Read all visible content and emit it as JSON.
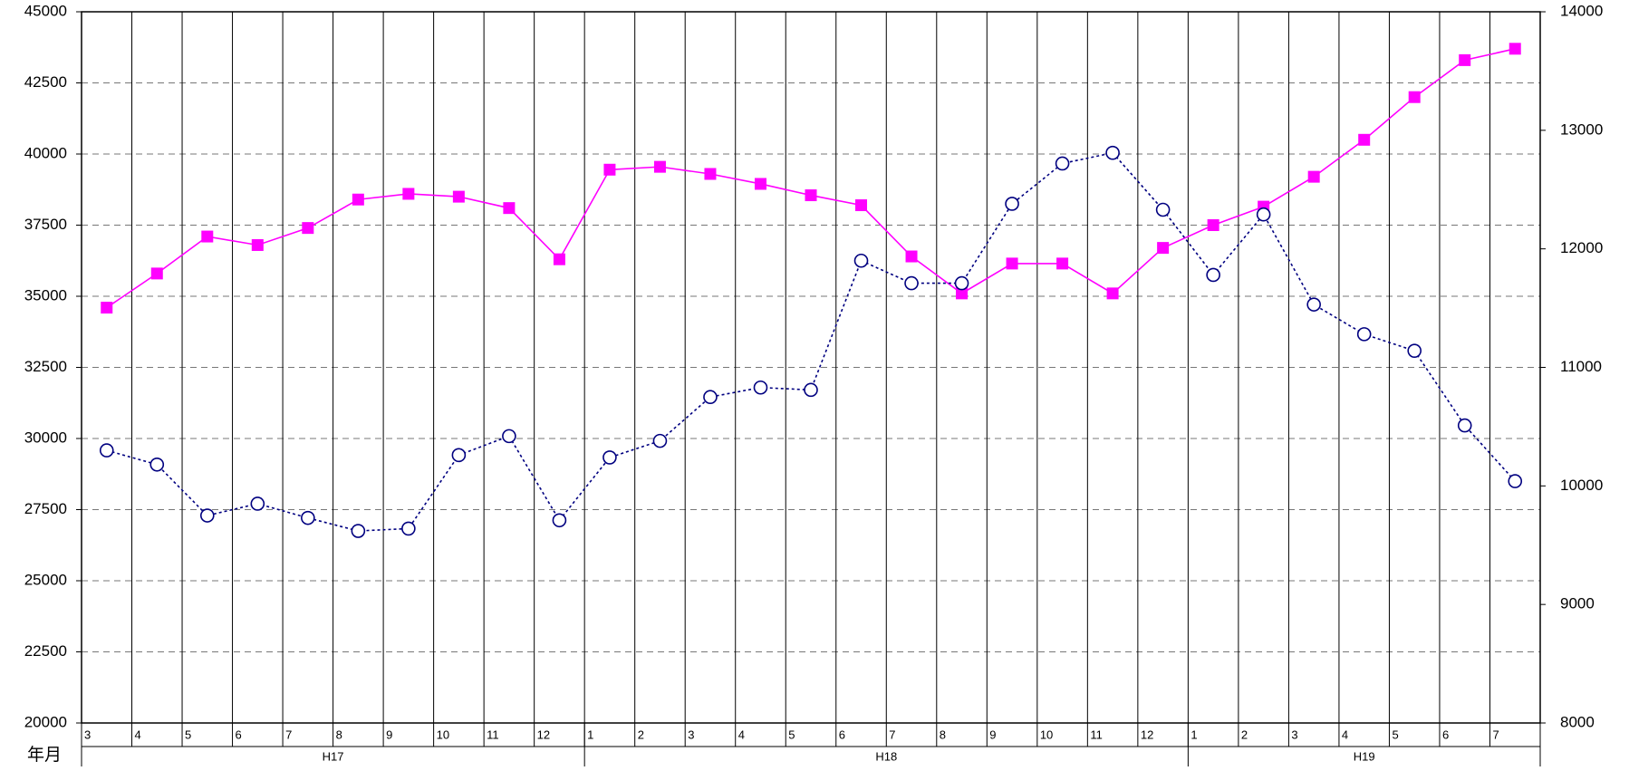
{
  "chart_data": {
    "type": "line",
    "xlabel": "年月",
    "categories": [
      "3",
      "4",
      "5",
      "6",
      "7",
      "8",
      "9",
      "10",
      "11",
      "12",
      "1",
      "2",
      "3",
      "4",
      "5",
      "6",
      "7",
      "8",
      "9",
      "10",
      "11",
      "12",
      "1",
      "2",
      "3",
      "4",
      "5",
      "6",
      "7"
    ],
    "year_groups": [
      {
        "label": "H17",
        "start": 0,
        "end": 9
      },
      {
        "label": "H18",
        "start": 10,
        "end": 21
      },
      {
        "label": "H19",
        "start": 22,
        "end": 28
      }
    ],
    "left_axis": {
      "ylim": [
        20000,
        45000
      ],
      "ticks": [
        20000,
        22500,
        25000,
        27500,
        30000,
        32500,
        35000,
        37500,
        40000,
        42500,
        45000
      ]
    },
    "right_axis": {
      "ylim": [
        8000,
        14000
      ],
      "ticks": [
        8000,
        9000,
        10000,
        11000,
        12000,
        13000,
        14000
      ]
    },
    "grid": true,
    "legend": "none",
    "series": [
      {
        "axis": "left",
        "marker": "square",
        "line_style": "solid",
        "color": "#ff00ff",
        "values": [
          34600,
          35800,
          37100,
          36800,
          37400,
          38400,
          38600,
          38500,
          38100,
          36300,
          39450,
          39550,
          39300,
          38950,
          38550,
          38200,
          36400,
          35100,
          36150,
          36150,
          35100,
          36700,
          37500,
          38150,
          39200,
          40500,
          42000,
          43300,
          43700
        ]
      },
      {
        "axis": "right",
        "marker": "circle-open",
        "line_style": "dotted",
        "color": "#000080",
        "values": [
          10300,
          10180,
          9750,
          9850,
          9730,
          9620,
          9640,
          10260,
          10420,
          9710,
          10240,
          10380,
          10750,
          10830,
          10810,
          11900,
          11710,
          11710,
          12380,
          12720,
          12810,
          12330,
          11780,
          12290,
          11530,
          11280,
          11140,
          10510,
          10040
        ]
      }
    ]
  }
}
